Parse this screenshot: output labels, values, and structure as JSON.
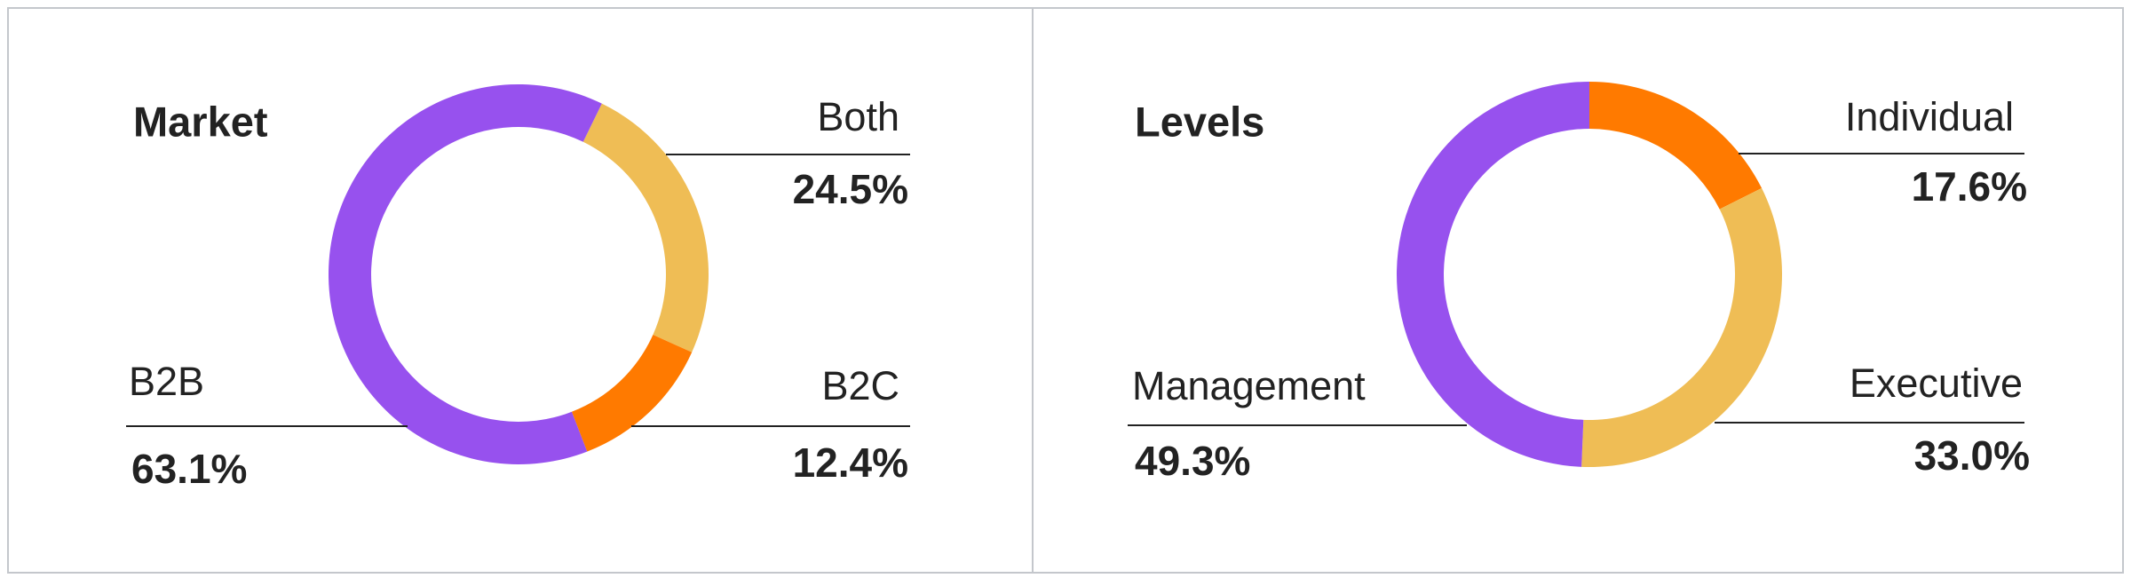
{
  "chart_data": [
    {
      "type": "pie",
      "title": "Market",
      "categories": [
        "Both",
        "B2C",
        "B2B"
      ],
      "values": [
        24.5,
        12.4,
        63.1
      ],
      "value_labels": [
        "24.5%",
        "12.4%",
        "63.1%"
      ],
      "colors": [
        "#efbd55",
        "#ff7a00",
        "#9751ee"
      ]
    },
    {
      "type": "pie",
      "title": "Levels",
      "categories": [
        "Individual",
        "Executive",
        "Management"
      ],
      "values": [
        17.6,
        33.0,
        49.3
      ],
      "value_labels": [
        "17.6%",
        "33.0%",
        "49.3%"
      ],
      "colors": [
        "#ff7a00",
        "#efbd55",
        "#9751ee"
      ]
    }
  ]
}
